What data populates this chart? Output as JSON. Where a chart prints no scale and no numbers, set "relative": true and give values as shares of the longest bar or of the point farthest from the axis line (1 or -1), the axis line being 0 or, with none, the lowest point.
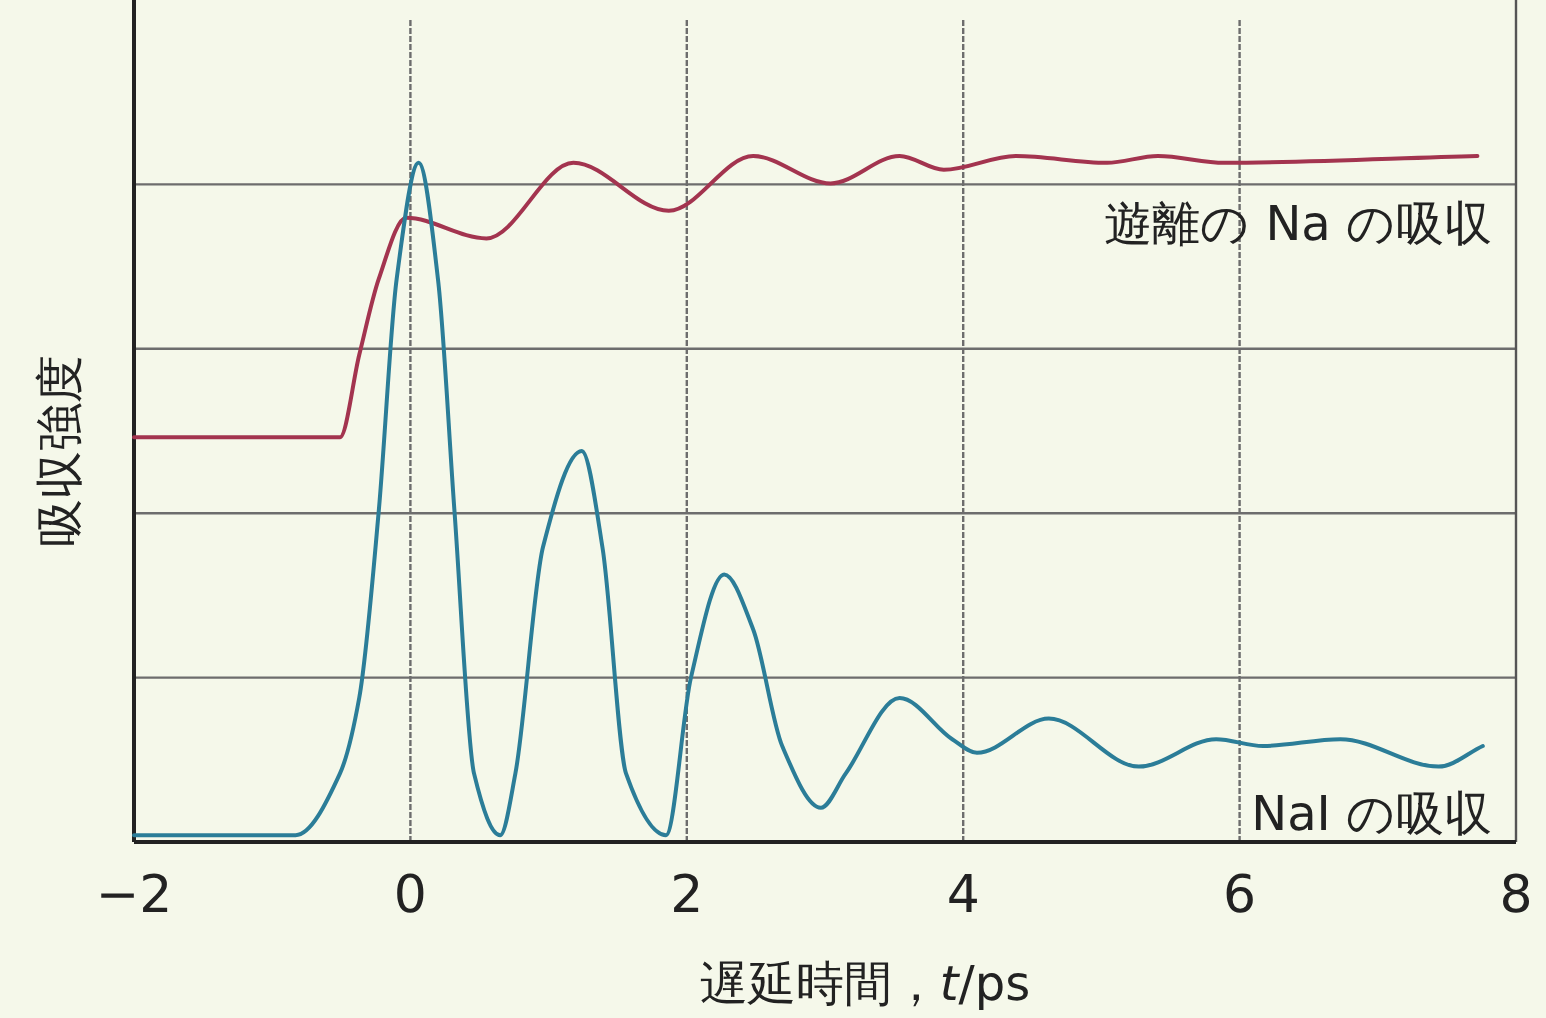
{
  "chart_data": {
    "type": "line",
    "relative": true,
    "xlabel": "遅延時間，*t*/ps",
    "ylabel": "吸収強度",
    "xlim": [
      -2,
      8
    ],
    "xticks": [
      -2,
      0,
      2,
      4,
      6,
      8
    ],
    "grid": true,
    "series": [
      {
        "name": "遊離の Na の吸収",
        "color": "#a3344f",
        "x": [
          -2,
          -0.51,
          -0.37,
          -0.23,
          -0.03,
          0.55,
          1.18,
          1.87,
          2.48,
          3.04,
          3.54,
          3.86,
          4.38,
          5.04,
          5.41,
          5.89,
          7.72
        ],
        "values": [
          0.59,
          0.59,
          0.71,
          0.82,
          0.91,
          0.88,
          0.99,
          0.92,
          1.0,
          0.96,
          1.0,
          0.98,
          1.0,
          0.99,
          1.0,
          0.99,
          1.0
        ]
      },
      {
        "name": "NaI の吸収",
        "color": "#2b7d98",
        "x": [
          -2,
          -0.83,
          -0.51,
          -0.37,
          -0.23,
          -0.1,
          0.06,
          0.2,
          0.32,
          0.46,
          0.65,
          0.76,
          0.96,
          1.24,
          1.39,
          1.56,
          1.85,
          2.03,
          2.27,
          2.48,
          2.69,
          2.97,
          3.15,
          3.54,
          3.92,
          4.1,
          4.62,
          5.27,
          5.83,
          6.17,
          6.73,
          7.44,
          7.76
        ],
        "values": [
          0.01,
          0.01,
          0.1,
          0.21,
          0.48,
          0.82,
          0.99,
          0.82,
          0.48,
          0.1,
          0.01,
          0.1,
          0.43,
          0.57,
          0.43,
          0.1,
          0.01,
          0.24,
          0.39,
          0.31,
          0.14,
          0.05,
          0.1,
          0.21,
          0.15,
          0.13,
          0.18,
          0.11,
          0.15,
          0.14,
          0.15,
          0.11,
          0.14
        ]
      }
    ]
  }
}
